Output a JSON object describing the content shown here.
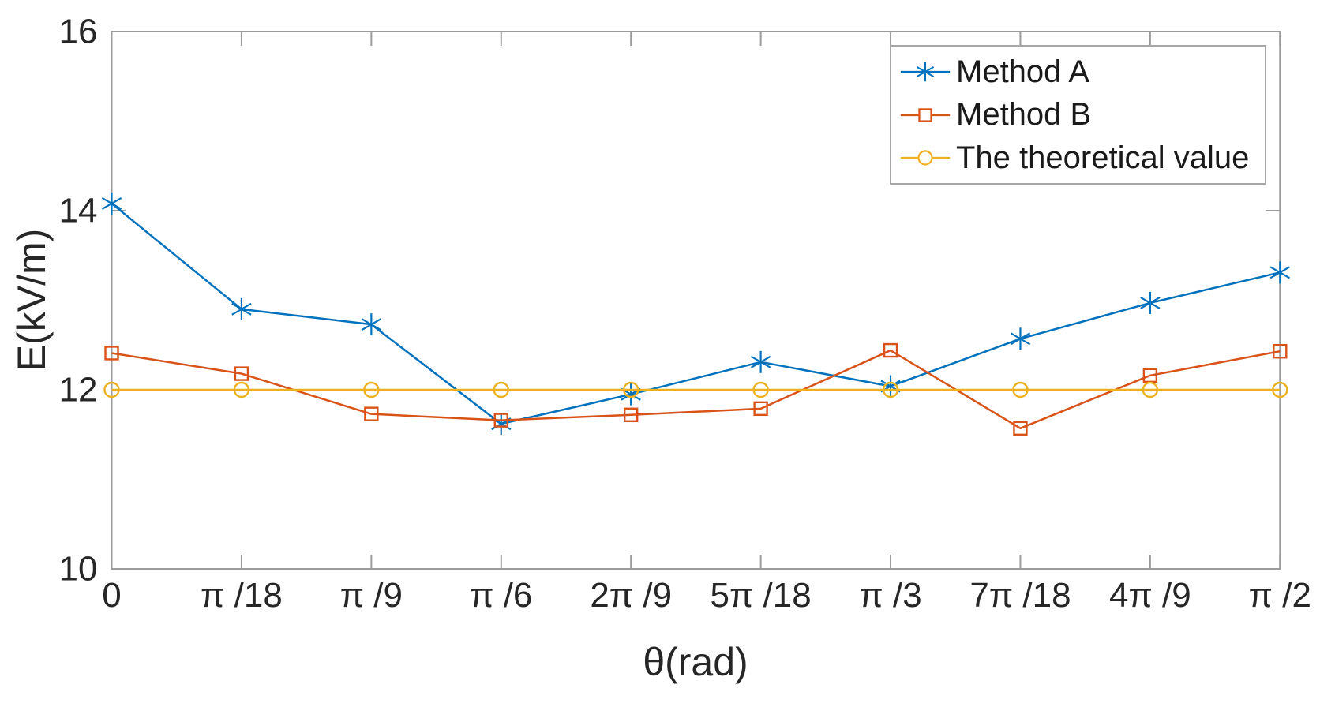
{
  "chart_data": {
    "type": "line",
    "title": "",
    "xlabel": "θ(rad)",
    "ylabel": "E(kV/m)",
    "categories": [
      "0",
      "π /18",
      "π /9",
      "π /6",
      "2π /9",
      "5π /18",
      "π /3",
      "7π /18",
      "4π /9",
      "π /2"
    ],
    "ylim": [
      10,
      16
    ],
    "yticks": [
      10,
      12,
      14,
      16
    ],
    "grid": false,
    "legend_position": "top-right",
    "axis_color": "#9b9b9b",
    "text_color": "#262626",
    "series": [
      {
        "name": "Method A",
        "marker": "asterisk",
        "color": "#0072BD",
        "values": [
          14.08,
          12.9,
          12.73,
          11.62,
          11.95,
          12.31,
          12.04,
          12.57,
          12.97,
          13.31
        ]
      },
      {
        "name": "Method B",
        "marker": "square",
        "color": "#D95319",
        "values": [
          12.41,
          12.18,
          11.73,
          11.66,
          11.72,
          11.79,
          12.44,
          11.57,
          12.16,
          12.43
        ]
      },
      {
        "name": "The theoretical value",
        "marker": "circle",
        "color": "#EDB120",
        "values": [
          12,
          12,
          12,
          12,
          12,
          12,
          12,
          12,
          12,
          12
        ]
      }
    ]
  }
}
